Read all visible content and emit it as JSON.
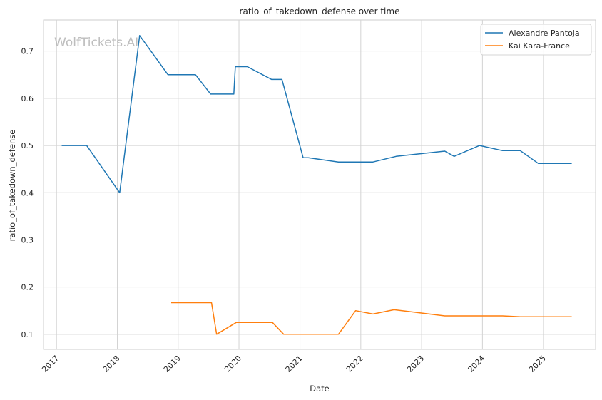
{
  "chart_data": {
    "type": "line",
    "title": "ratio_of_takedown_defense over time",
    "xlabel": "Date",
    "ylabel": "ratio_of_takedown_defense",
    "watermark": "WolfTickets.AI",
    "xlim": [
      "2016-10-15",
      "2025-11-10"
    ],
    "ylim": [
      0.068,
      0.766
    ],
    "x_ticks": [
      "2017",
      "2018",
      "2019",
      "2020",
      "2021",
      "2022",
      "2023",
      "2024",
      "2025"
    ],
    "y_ticks": [
      0.1,
      0.2,
      0.3,
      0.4,
      0.5,
      0.6,
      0.7
    ],
    "y_tick_labels": [
      "0.1",
      "0.2",
      "0.3",
      "0.4",
      "0.5",
      "0.6",
      "0.7"
    ],
    "grid": true,
    "legend_position": "top-right",
    "series": [
      {
        "name": "Alexandre Pantoja",
        "color": "#1f77b4",
        "points": [
          [
            "2017-02-01",
            0.5
          ],
          [
            "2017-07-01",
            0.5
          ],
          [
            "2018-01-15",
            0.4
          ],
          [
            "2018-05-15",
            0.733
          ],
          [
            "2018-11-01",
            0.65
          ],
          [
            "2019-04-15",
            0.65
          ],
          [
            "2019-07-15",
            0.609
          ],
          [
            "2019-12-01",
            0.609
          ],
          [
            "2019-12-10",
            0.667
          ],
          [
            "2020-02-20",
            0.667
          ],
          [
            "2020-07-15",
            0.64
          ],
          [
            "2020-09-15",
            0.64
          ],
          [
            "2021-01-20",
            0.474
          ],
          [
            "2021-02-20",
            0.474
          ],
          [
            "2021-08-20",
            0.465
          ],
          [
            "2022-03-15",
            0.465
          ],
          [
            "2022-08-01",
            0.477
          ],
          [
            "2023-05-20",
            0.488
          ],
          [
            "2023-07-15",
            0.477
          ],
          [
            "2023-12-15",
            0.5
          ],
          [
            "2024-05-01",
            0.489
          ],
          [
            "2024-08-15",
            0.489
          ],
          [
            "2024-12-01",
            0.462
          ],
          [
            "2025-06-20",
            0.462
          ]
        ]
      },
      {
        "name": "Kai Kara-France",
        "color": "#ff7f0e",
        "points": [
          [
            "2018-11-20",
            0.167
          ],
          [
            "2019-07-20",
            0.167
          ],
          [
            "2019-08-20",
            0.1
          ],
          [
            "2019-12-15",
            0.125
          ],
          [
            "2020-07-20",
            0.125
          ],
          [
            "2020-09-25",
            0.1
          ],
          [
            "2021-08-20",
            0.1
          ],
          [
            "2021-12-01",
            0.15
          ],
          [
            "2022-03-15",
            0.143
          ],
          [
            "2022-07-20",
            0.152
          ],
          [
            "2023-05-20",
            0.139
          ],
          [
            "2024-05-01",
            0.139
          ],
          [
            "2024-08-15",
            0.137
          ],
          [
            "2025-06-20",
            0.137
          ]
        ]
      }
    ]
  }
}
